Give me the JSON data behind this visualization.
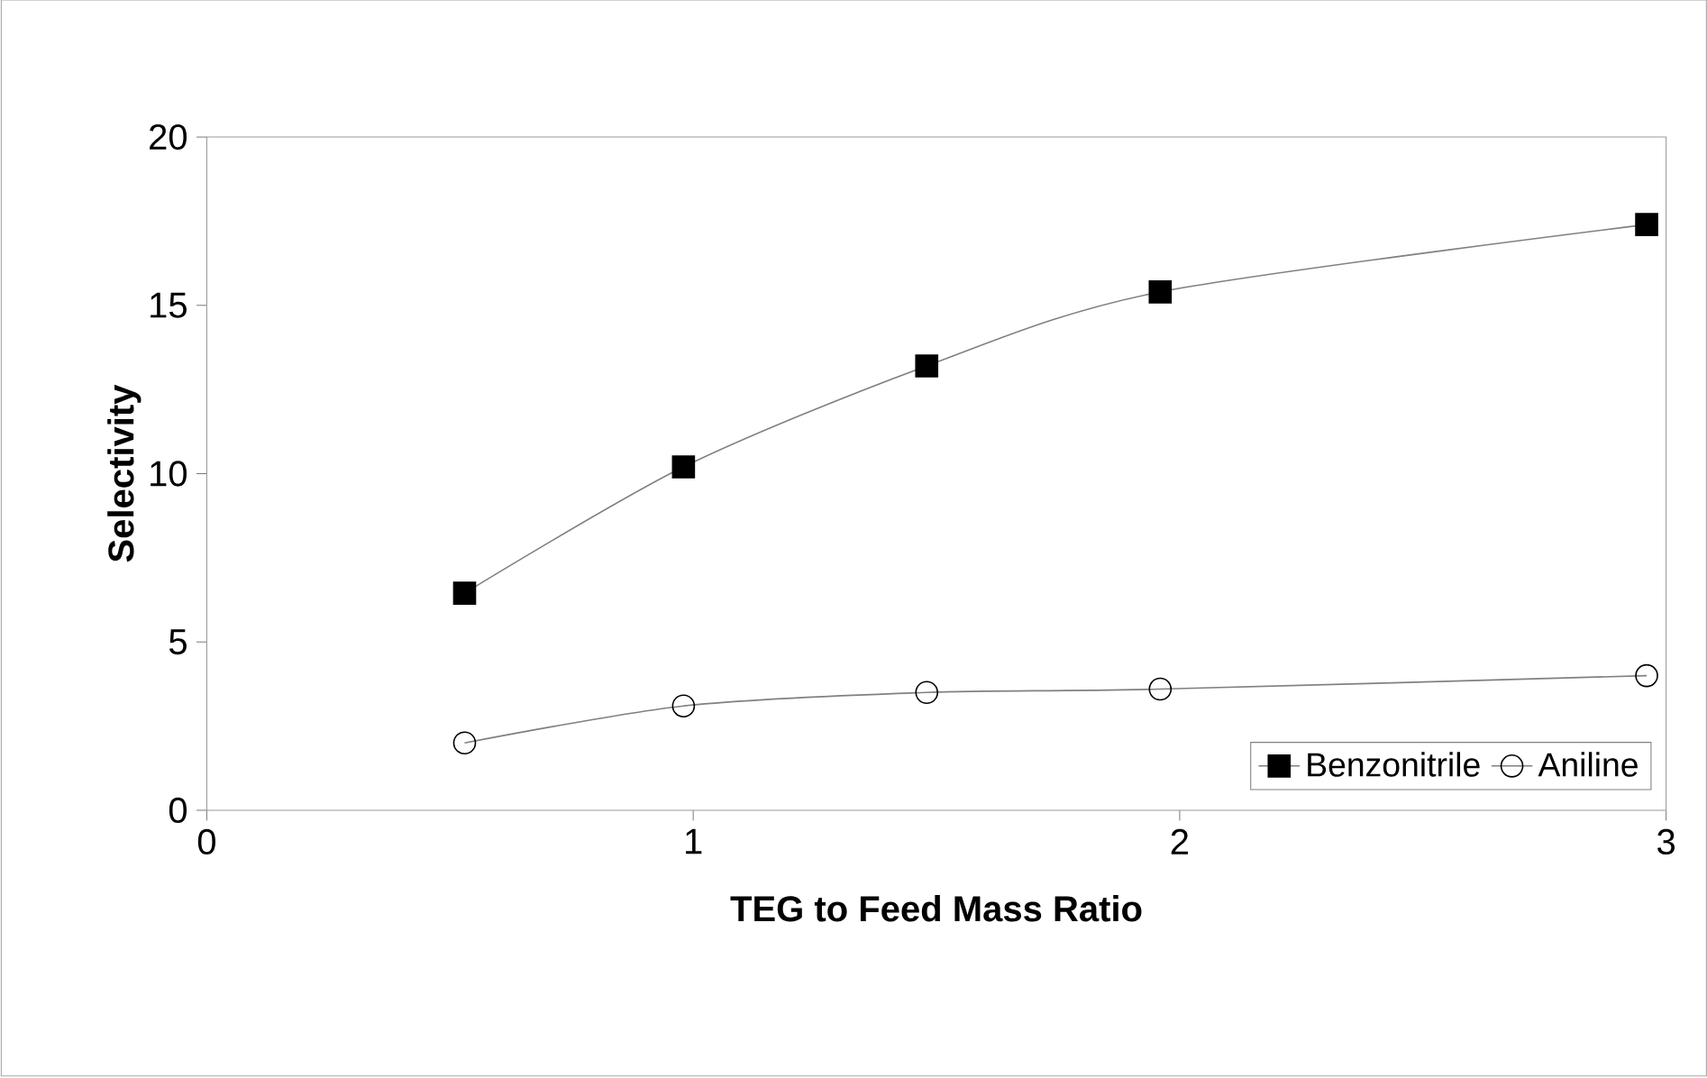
{
  "chart_data": {
    "type": "line",
    "xlabel": "TEG to Feed Mass Ratio",
    "ylabel": "Selectivity",
    "xlim": [
      0,
      3
    ],
    "xticks": [
      0,
      1,
      2,
      3
    ],
    "ylim": [
      0,
      20
    ],
    "yticks": [
      0,
      5,
      10,
      15,
      20
    ],
    "grid": false,
    "legend": "bottom right",
    "series": [
      {
        "name": "Benzonitrile",
        "color": "#000000",
        "marker": "square",
        "x": [
          0.53,
          0.98,
          1.48,
          1.96,
          2.96
        ],
        "values": [
          6.45,
          10.2,
          13.2,
          15.4,
          17.4
        ]
      },
      {
        "name": "Aniline",
        "color": "#000000",
        "marker": "circle",
        "x": [
          0.53,
          0.98,
          1.48,
          1.96,
          2.96
        ],
        "values": [
          2.0,
          3.1,
          3.5,
          3.6,
          4.0
        ]
      }
    ]
  }
}
